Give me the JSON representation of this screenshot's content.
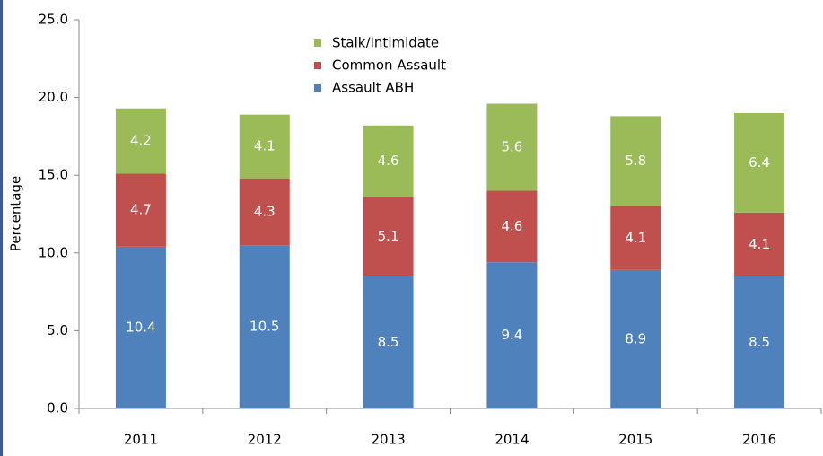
{
  "chart_data": {
    "type": "stacked_bar",
    "y_label": "Percentage",
    "categories": [
      "2011",
      "2012",
      "2013",
      "2014",
      "2015",
      "2016"
    ],
    "series": [
      {
        "name": "Assault ABH",
        "color": "#4f81bd",
        "values": [
          10.4,
          10.5,
          8.5,
          9.4,
          8.9,
          8.5
        ]
      },
      {
        "name": "Common Assault",
        "color": "#c0504d",
        "values": [
          4.7,
          4.3,
          5.1,
          4.6,
          4.1,
          4.1
        ]
      },
      {
        "name": "Stalk/Intimidate",
        "color": "#9bbb59",
        "values": [
          4.2,
          4.1,
          4.6,
          5.6,
          5.8,
          6.4
        ]
      }
    ],
    "ylim": [
      0,
      25
    ],
    "yticks": [
      {
        "value": 0,
        "label": "0.0"
      },
      {
        "value": 5,
        "label": "5.0"
      },
      {
        "value": 10,
        "label": "10.0"
      },
      {
        "value": 15,
        "label": "15.0"
      },
      {
        "value": 20,
        "label": "20.0"
      },
      {
        "value": 25,
        "label": "25.0"
      }
    ],
    "legend": "top-center"
  }
}
